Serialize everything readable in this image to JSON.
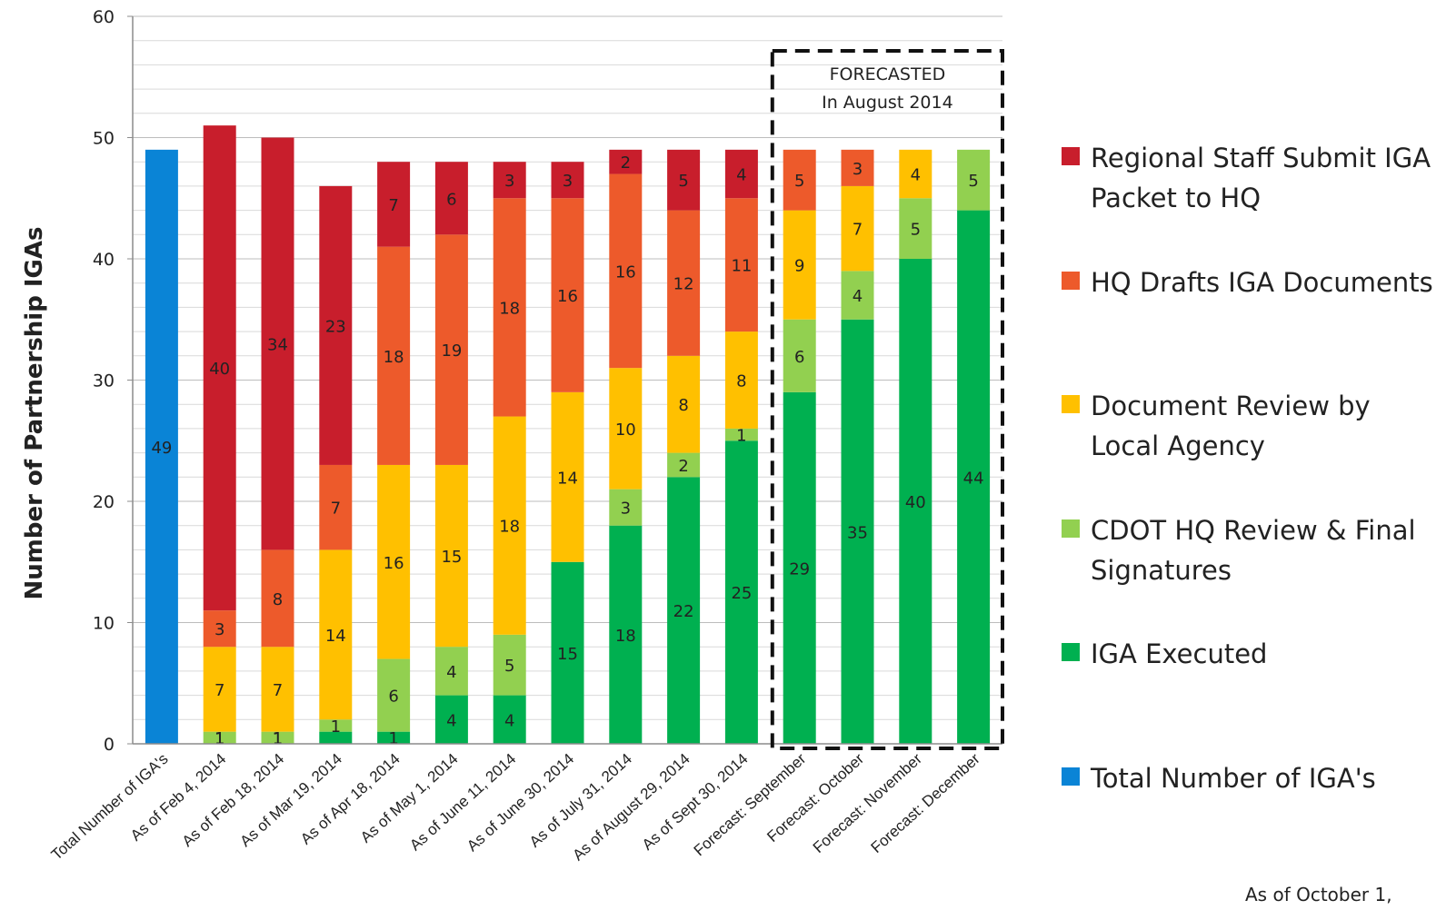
{
  "chart_data": {
    "type": "bar",
    "stacked": true,
    "ylabel": "Number of Partnership IGAs",
    "ylim": [
      0,
      60
    ],
    "yticks": [
      0,
      10,
      20,
      30,
      40,
      50,
      60
    ],
    "grid": true,
    "legend_position": "right",
    "categories": [
      "Total Number of IGA's",
      "As of Feb 4, 2014",
      "As of Feb 18, 2014",
      "As of Mar 19, 2014",
      "As of Apr 18, 2014",
      "As of May 1, 2014",
      "As of June 11, 2014",
      "As of June 30, 2014",
      "As of July 31, 2014",
      "As of August 29, 2014",
      "As of Sept 30, 2014",
      "Forecast: September",
      "Forecast: October",
      "Forecast: November",
      "Forecast: December"
    ],
    "series": [
      {
        "name": "IGA Executed",
        "color": "#00b050",
        "values": [
          0,
          0,
          0,
          1,
          1,
          4,
          4,
          15,
          18,
          22,
          25,
          29,
          35,
          40,
          44
        ],
        "labels": [
          "",
          "",
          "",
          "",
          "",
          "4",
          "4",
          "15",
          "18",
          "22",
          "25",
          "29",
          "35",
          "40",
          "44"
        ]
      },
      {
        "name": "CDOT HQ Review & Final Signatures",
        "color": "#92d050",
        "values": [
          0,
          1,
          1,
          1,
          6,
          4,
          5,
          0,
          3,
          2,
          1,
          6,
          4,
          5,
          5
        ],
        "labels": [
          "",
          "1",
          "1",
          "1",
          "6",
          "4",
          "5",
          "",
          "3",
          "2",
          "1",
          "6",
          "4",
          "5",
          "5"
        ]
      },
      {
        "name": "Document Review by Local Agency",
        "color": "#ffc000",
        "values": [
          0,
          7,
          7,
          14,
          16,
          15,
          18,
          14,
          10,
          8,
          8,
          9,
          7,
          4,
          0
        ],
        "labels": [
          "",
          "7",
          "7",
          "14",
          "16",
          "15",
          "18",
          "14",
          "10",
          "8",
          "8",
          "9",
          "7",
          "4",
          ""
        ]
      },
      {
        "name": "HQ Drafts IGA Documents",
        "color": "#ed5a2b",
        "values": [
          0,
          3,
          8,
          7,
          18,
          19,
          18,
          16,
          16,
          12,
          11,
          5,
          3,
          0,
          0
        ],
        "labels": [
          "",
          "3",
          "8",
          "7",
          "18",
          "19",
          "18",
          "16",
          "16",
          "12",
          "11",
          "5",
          "3",
          "",
          ""
        ]
      },
      {
        "name": "Regional Staff Submit IGA Packet to HQ",
        "color": "#c81e2c",
        "values": [
          0,
          40,
          34,
          23,
          7,
          6,
          3,
          3,
          2,
          5,
          4,
          0,
          0,
          0,
          0
        ],
        "labels": [
          "",
          "40",
          "34",
          "23",
          "7",
          "6",
          "3",
          "3",
          "2",
          "5",
          "4",
          "",
          "",
          "",
          ""
        ]
      },
      {
        "name": "Total Number of IGA's",
        "color": "#0a84d6",
        "values": [
          49,
          0,
          0,
          0,
          0,
          0,
          0,
          0,
          0,
          0,
          0,
          0,
          0,
          0,
          0
        ],
        "labels": [
          "49",
          "",
          "",
          "",
          "",
          "",
          "",
          "",
          "",
          "",
          "",
          "",
          "",
          "",
          ""
        ]
      }
    ],
    "extra_labels": [
      {
        "category_index": 1,
        "value": 1,
        "text": "1"
      },
      {
        "category_index": 2,
        "value": 1,
        "text": "1"
      },
      {
        "category_index": 4,
        "value": 1,
        "text": "1"
      }
    ],
    "forecast_box": {
      "from_category": "Forecast: September",
      "to_category": "Forecast: December",
      "line1": "FORECASTED",
      "line2": "In August 2014"
    },
    "legend": [
      {
        "label": "Regional Staff Submit IGA Packet to HQ",
        "color": "#c81e2c"
      },
      {
        "label": "HQ Drafts IGA Documents",
        "color": "#ed5a2b"
      },
      {
        "label": "Document Review by Local Agency",
        "color": "#ffc000"
      },
      {
        "label": "CDOT HQ Review & Final Signatures",
        "color": "#92d050"
      },
      {
        "label": "IGA Executed",
        "color": "#00b050"
      },
      {
        "label": "Total Number of IGA's",
        "color": "#0a84d6"
      }
    ]
  },
  "footnote": "As of October 1,"
}
